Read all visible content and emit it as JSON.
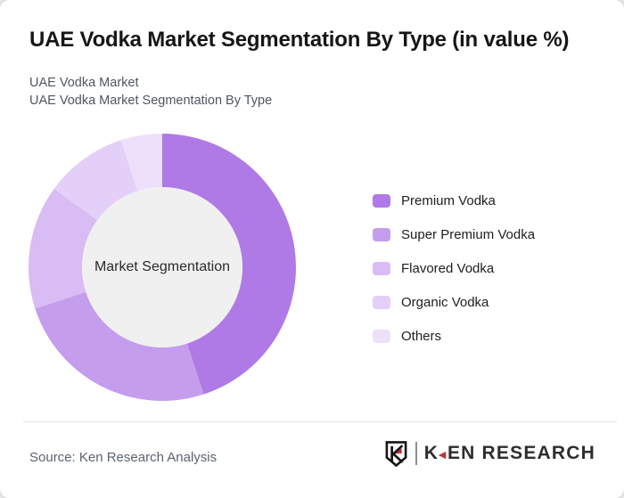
{
  "header": {
    "title": "UAE Vodka Market Segmentation By Type (in value %)",
    "subtitle_lines": [
      "UAE Vodka Market",
      "UAE Vodka Market Segmentation By Type"
    ]
  },
  "chart_data": {
    "type": "pie",
    "variant": "donut",
    "title": "UAE Vodka Market Segmentation By Type (in value %)",
    "center_label": "Market Segmentation",
    "categories": [
      "Premium Vodka",
      "Super Premium Vodka",
      "Flavored Vodka",
      "Organic Vodka",
      "Others"
    ],
    "values": [
      45,
      25,
      15,
      10,
      5
    ],
    "unit": "percent of market value",
    "colors": [
      "#af7ae6",
      "#c59ded",
      "#d8bcf3",
      "#e3cff7",
      "#eedffb"
    ],
    "start_angle_deg": 0,
    "direction": "clockwise",
    "inner_radius_ratio": 0.6,
    "center_fill": "#f0f0f0",
    "legend_position": "right",
    "data_labels": false,
    "grid": false
  },
  "footer": {
    "source_text": "Source: Ken Research Analysis",
    "brand": {
      "k": "K",
      "arrow": "◄",
      "rest": "EN RESEARCH"
    },
    "brand_red": "#c13331"
  }
}
